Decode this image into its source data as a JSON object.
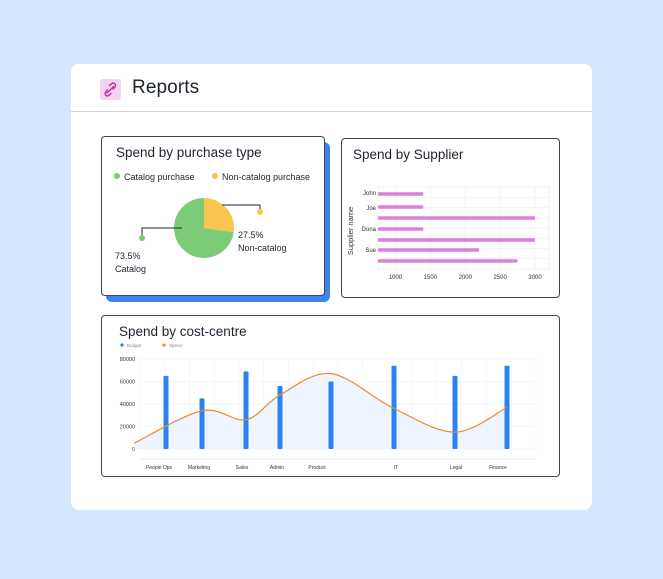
{
  "header": {
    "title": "Reports",
    "logo_icon": "link-icon"
  },
  "colors": {
    "catalog": "#7ccc77",
    "non_catalog": "#fac54c",
    "supplier_bar": "#da82da",
    "budget": "#2a84f0",
    "spend": "#e88a30"
  },
  "purchase_type": {
    "title": "Spend by purchase type",
    "legend": [
      "Catalog purchase",
      "Non-catalog purchase"
    ],
    "catalog_pct": "73.5%",
    "catalog_label": "Catalog",
    "non_catalog_pct": "27.5%",
    "non_catalog_label": "Non-catalog"
  },
  "supplier": {
    "title": "Spend by Supplier",
    "ylabel": "Supplier name",
    "row_labels": [
      "John",
      "Joe",
      "Dona",
      "Sue"
    ],
    "x_ticks": [
      "1000",
      "1500",
      "2000",
      "2500",
      "3000"
    ]
  },
  "cost_centre": {
    "title": "Spend by cost-centre",
    "legend": [
      "Budget",
      "Spend"
    ]
  },
  "chart_data": [
    {
      "type": "pie",
      "title": "Spend by purchase type",
      "labels": [
        "Catalog",
        "Non-catalog"
      ],
      "values": [
        73.5,
        27.5
      ],
      "legend": "top"
    },
    {
      "type": "bar",
      "orientation": "horizontal",
      "title": "Spend by Supplier",
      "ylabel": "Supplier name",
      "values": [
        1400,
        1400,
        3000,
        1400,
        3000,
        2200,
        2750
      ],
      "xlim": [
        750,
        3200
      ],
      "x_ticks": [
        1000,
        1500,
        2000,
        2500,
        3000
      ],
      "grid": true
    },
    {
      "type": "bar",
      "title": "Spend by cost-centre",
      "categories": [
        "People Ops",
        "Marketing",
        "Sales",
        "Admin",
        "Product",
        "IT",
        "Legal",
        "Finance"
      ],
      "series": [
        {
          "name": "Budget",
          "type": "bar",
          "values": [
            65000,
            45000,
            69000,
            56000,
            60000,
            74000,
            65000,
            74000
          ]
        },
        {
          "name": "Spend",
          "type": "line",
          "values": [
            5000,
            34000,
            26000,
            48000,
            67000,
            36000,
            15000,
            37000
          ]
        }
      ],
      "ylim": [
        0,
        80000
      ],
      "y_ticks": [
        0,
        20000,
        40000,
        60000,
        80000
      ],
      "legend": "top-left",
      "grid": true
    }
  ]
}
